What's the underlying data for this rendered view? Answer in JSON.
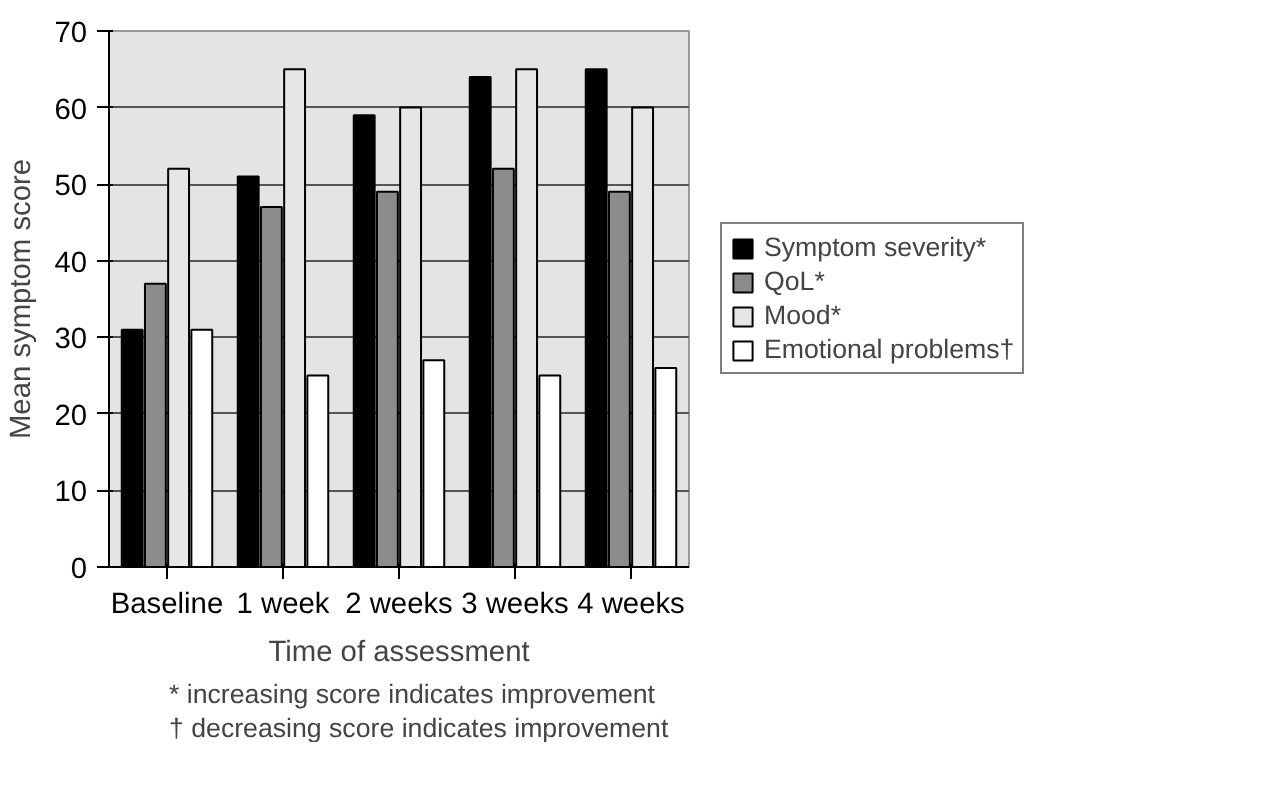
{
  "chart_data": {
    "type": "bar",
    "xlabel": "Time of assessment",
    "ylabel": "Mean symptom score",
    "categories": [
      "Baseline",
      "1 week",
      "2 weeks",
      "3 weeks",
      "4 weeks"
    ],
    "series": [
      {
        "name": "Symptom severity*",
        "color": "#000000",
        "values": [
          31,
          51,
          59,
          64,
          65
        ]
      },
      {
        "name": "QoL*",
        "color": "#8c8c8c",
        "values": [
          37,
          47,
          49,
          52,
          49
        ]
      },
      {
        "name": "Mood*",
        "color": "#e6e6e6",
        "values": [
          52,
          65,
          60,
          65,
          60
        ]
      },
      {
        "name": "Emotional problems†",
        "color": "#ffffff",
        "values": [
          31,
          25,
          27,
          25,
          26
        ]
      }
    ],
    "ylim": [
      0,
      70
    ],
    "yticks": [
      0,
      10,
      20,
      30,
      40,
      50,
      60,
      70
    ],
    "grid": "y",
    "legend": "right",
    "annotations": [
      "* increasing score indicates improvement",
      "† decreasing score indicates improvement"
    ]
  }
}
